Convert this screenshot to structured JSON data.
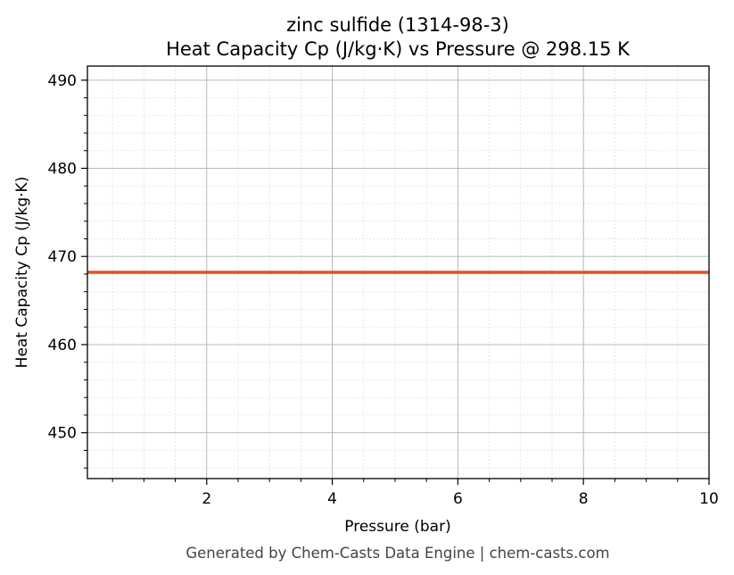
{
  "chart_data": {
    "type": "line",
    "title": "zinc sulfide (1314-98-3)",
    "subtitle": "Heat Capacity Cp (J/kg·K) vs Pressure @ 298.15 K",
    "xlabel": "Pressure (bar)",
    "ylabel": "Heat Capacity Cp (J/kg·K)",
    "xlim": [
      0.1,
      10
    ],
    "ylim": [
      444.8,
      491.6
    ],
    "xticks": [
      2,
      4,
      6,
      8,
      10
    ],
    "yticks": [
      450,
      460,
      470,
      480,
      490
    ],
    "grid": true,
    "series": [
      {
        "name": "Cp",
        "color": "#e0541f",
        "x": [
          0.1,
          10
        ],
        "y": [
          468.2,
          468.2
        ]
      }
    ]
  },
  "footer": "Generated by Chem-Casts Data Engine | chem-casts.com"
}
